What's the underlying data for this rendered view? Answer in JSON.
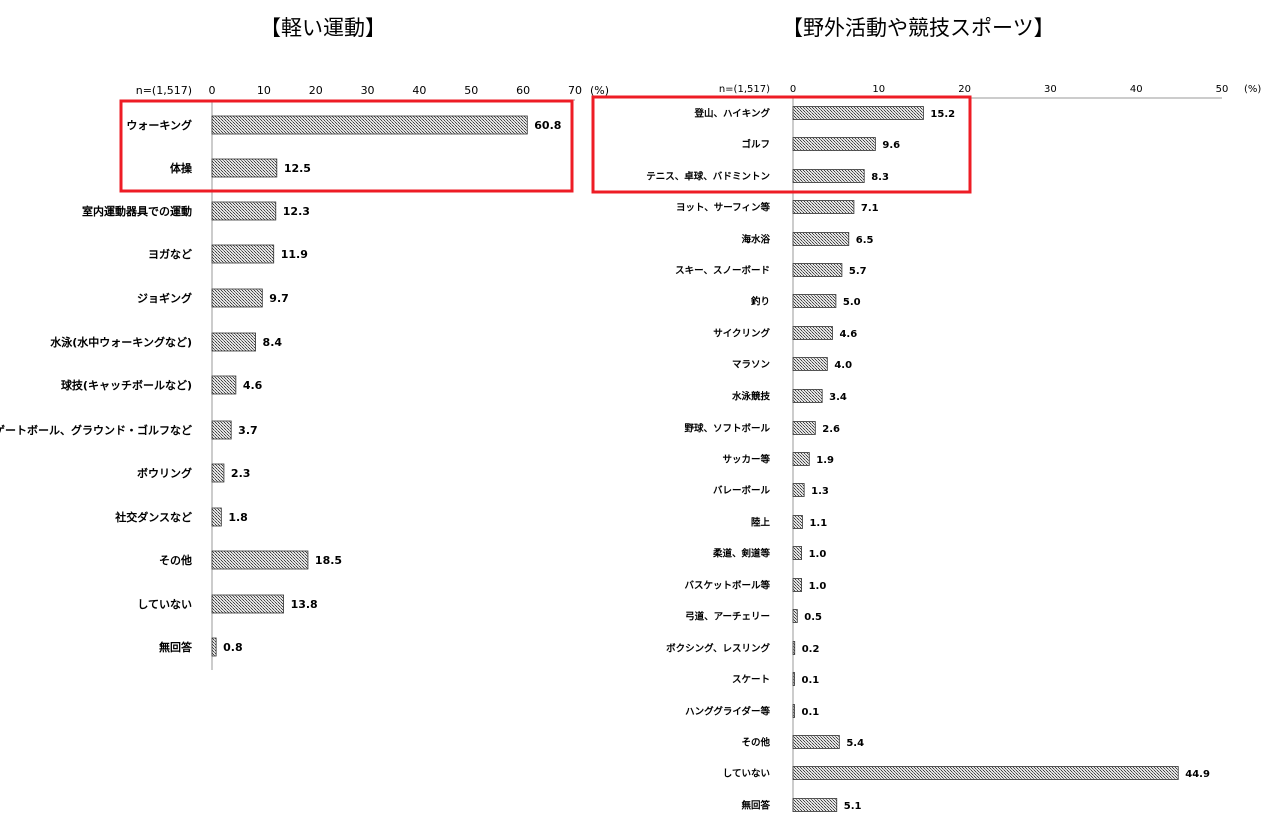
{
  "chart_data": [
    {
      "type": "bar",
      "orientation": "horizontal",
      "title": "【軽い運動】",
      "n_label": "n=(1,517)",
      "unit": "(%)",
      "xlim": [
        0,
        70
      ],
      "ticks": [
        0,
        10,
        20,
        30,
        40,
        50,
        60,
        70
      ],
      "categories": [
        "ウォーキング",
        "体操",
        "室内運動器具での運動",
        "ヨガなど",
        "ジョギング",
        "水泳(水中ウォーキングなど)",
        "球技(キャッチボールなど)",
        "ゲートボール、グラウンド・ゴルフなど",
        "ボウリング",
        "社交ダンスなど",
        "その他",
        "していない",
        "無回答"
      ],
      "values": [
        60.8,
        12.5,
        12.3,
        11.9,
        9.7,
        8.4,
        4.6,
        3.7,
        2.3,
        1.8,
        18.5,
        13.8,
        0.8
      ],
      "highlighted": [
        "ウォーキング",
        "体操"
      ],
      "highlight_color": "#ee1c25"
    },
    {
      "type": "bar",
      "orientation": "horizontal",
      "title": "【野外活動や競技スポーツ】",
      "n_label": "n=(1,517)",
      "unit": "(%)",
      "xlim": [
        0,
        50
      ],
      "ticks": [
        0,
        10,
        20,
        30,
        40,
        50
      ],
      "categories": [
        "登山、ハイキング",
        "ゴルフ",
        "テニス、卓球、バドミントン",
        "ヨット、サーフィン等",
        "海水浴",
        "スキー、スノーボード",
        "釣り",
        "サイクリング",
        "マラソン",
        "水泳競技",
        "野球、ソフトボール",
        "サッカー等",
        "バレーボール",
        "陸上",
        "柔道、剣道等",
        "バスケットボール等",
        "弓道、アーチェリー",
        "ボクシング、レスリング",
        "スケート",
        "ハンググライダー等",
        "その他",
        "していない",
        "無回答"
      ],
      "values": [
        15.2,
        9.6,
        8.3,
        7.1,
        6.5,
        5.7,
        5.0,
        4.6,
        4.0,
        3.4,
        2.6,
        1.9,
        1.3,
        1.1,
        1.0,
        1.0,
        0.5,
        0.2,
        0.1,
        0.1,
        5.4,
        44.9,
        5.1
      ],
      "highlighted": [
        "登山、ハイキング",
        "ゴルフ",
        "テニス、卓球、バドミントン"
      ],
      "highlight_color": "#ee1c25"
    }
  ]
}
